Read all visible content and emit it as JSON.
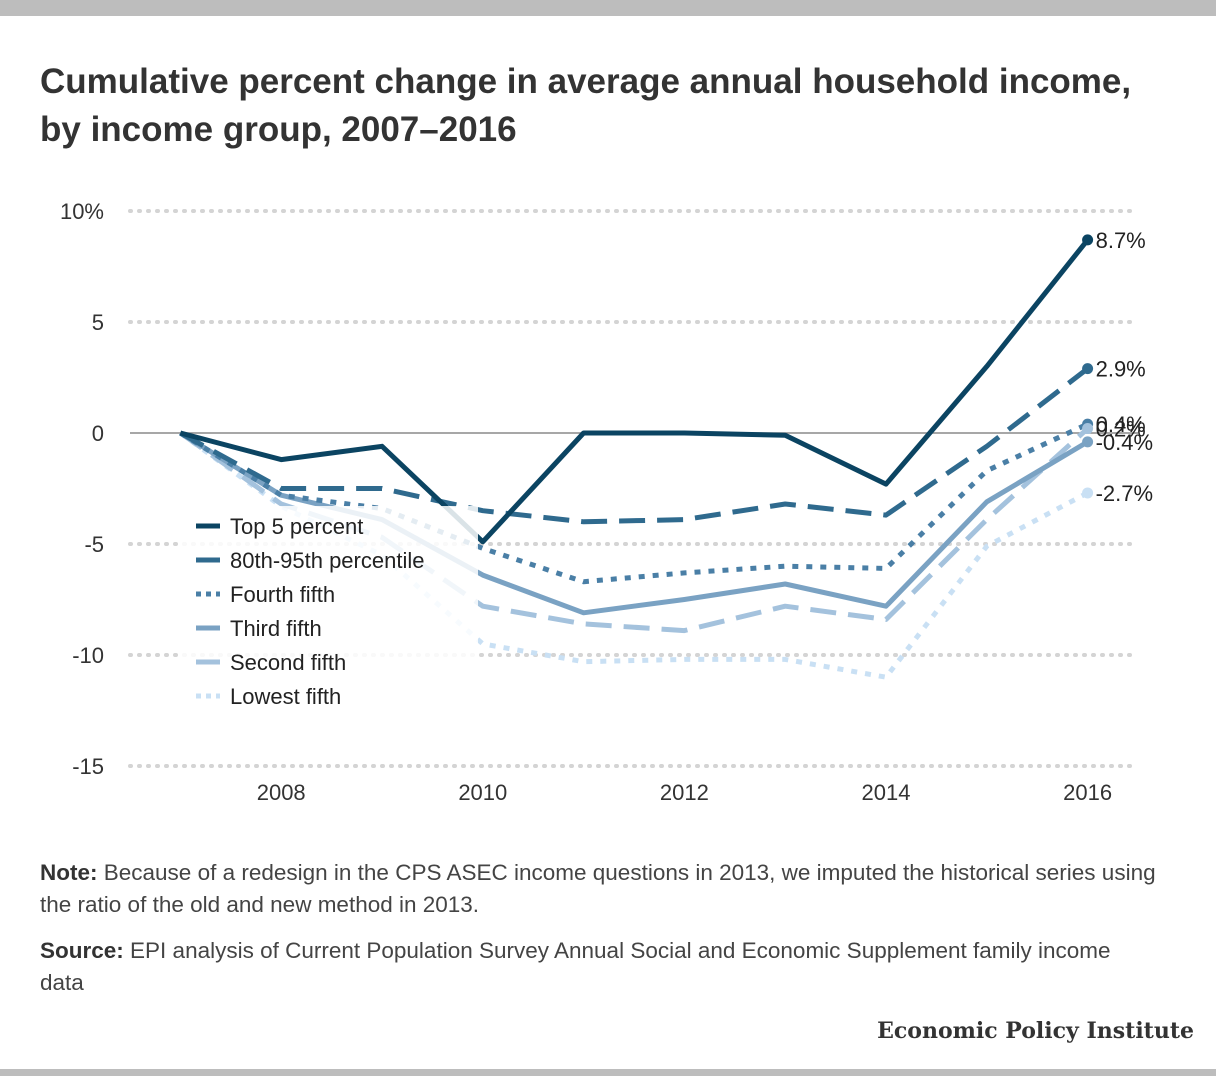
{
  "title": "Cumulative percent change in average annual household income, by income group, 2007–2016",
  "note": {
    "label": "Note:",
    "text": " Because of a redesign in the CPS ASEC income questions in 2013, we imputed the historical series using the ratio of the old and new method in 2013."
  },
  "source": {
    "label": "Source:",
    "text": " EPI analysis of Current Population Survey Annual Social and Economic Supplement family income data"
  },
  "brand": "Economic Policy Institute",
  "chart_data": {
    "type": "line",
    "x": [
      2007,
      2008,
      2009,
      2010,
      2011,
      2012,
      2013,
      2014,
      2015,
      2016
    ],
    "x_ticks": [
      "2008",
      "2010",
      "2012",
      "2014",
      "2016"
    ],
    "x_tick_values": [
      2008,
      2010,
      2012,
      2014,
      2016
    ],
    "y_ticks": [
      "10%",
      "5",
      "0",
      "-5",
      "-10",
      "-15"
    ],
    "y_tick_values": [
      10,
      5,
      0,
      -5,
      -10,
      -15
    ],
    "ylim": [
      -15,
      10
    ],
    "xlim": [
      2006.5,
      2016.5
    ],
    "grid": true,
    "grid_style": "dotted",
    "legend_position": "bottom-left",
    "series": [
      {
        "name": "Top 5 percent",
        "color": "#0b4462",
        "dash": "solid",
        "values": [
          0,
          -1.2,
          -0.6,
          -4.9,
          0,
          0,
          -0.1,
          -2.3,
          3.0,
          8.7
        ],
        "end_label": "8.7%"
      },
      {
        "name": "80th-95th percentile",
        "color": "#2f6a8e",
        "dash": "dashed",
        "values": [
          0,
          -2.5,
          -2.5,
          -3.5,
          -4.0,
          -3.9,
          -3.2,
          -3.7,
          -0.6,
          2.9
        ],
        "end_label": "2.9%"
      },
      {
        "name": "Fourth fifth",
        "color": "#4a7fa6",
        "dash": "dotted",
        "values": [
          0,
          -2.8,
          -3.4,
          -5.2,
          -6.7,
          -6.3,
          -6.0,
          -6.1,
          -1.7,
          0.4
        ],
        "end_label": "0.4%"
      },
      {
        "name": "Third fifth",
        "color": "#7aa2c3",
        "dash": "solid",
        "values": [
          0,
          -2.8,
          -3.9,
          -6.4,
          -8.1,
          -7.5,
          -6.8,
          -7.8,
          -3.1,
          -0.4
        ],
        "end_label": "-0.4%"
      },
      {
        "name": "Second fifth",
        "color": "#a4c2dd",
        "dash": "dashed",
        "values": [
          0,
          -3.2,
          -4.7,
          -7.8,
          -8.6,
          -8.9,
          -7.8,
          -8.4,
          -3.9,
          0.2
        ],
        "end_label": "0.2%"
      },
      {
        "name": "Lowest fifth",
        "color": "#c9e0f4",
        "dash": "dotted",
        "values": [
          0,
          -3.3,
          -5.5,
          -9.5,
          -10.3,
          -10.2,
          -10.2,
          -11.0,
          -5.1,
          -2.7
        ],
        "end_label": "-2.7%"
      }
    ]
  }
}
